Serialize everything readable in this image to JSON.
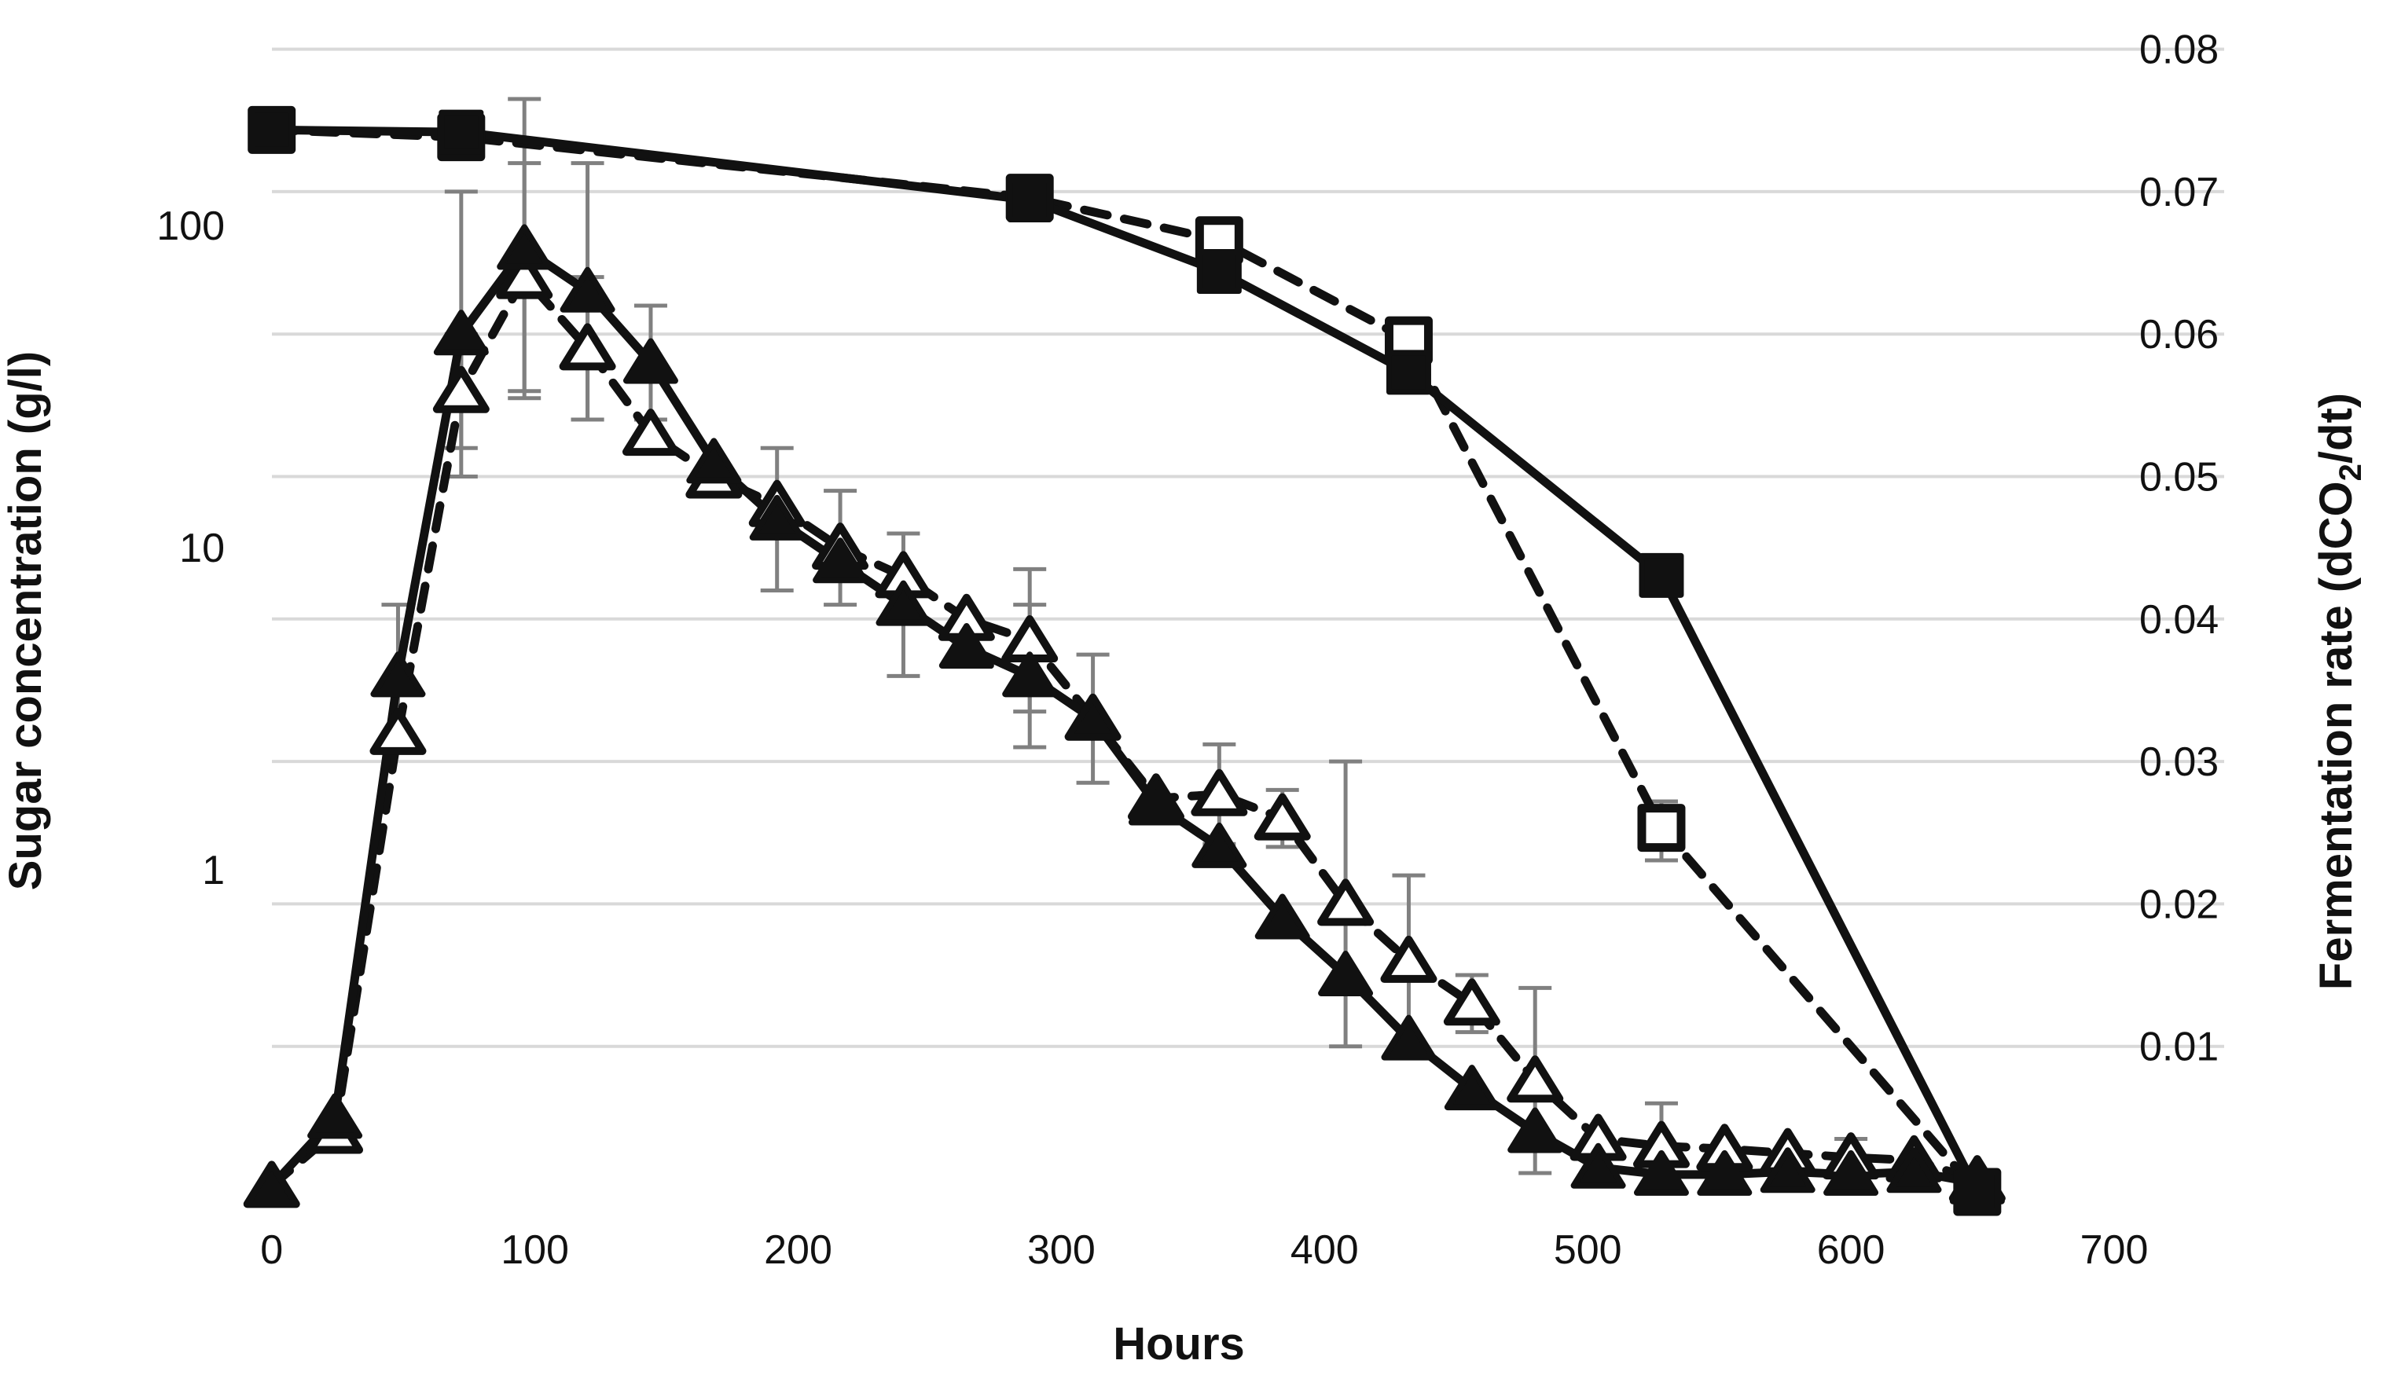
{
  "figure": {
    "background": "#ffffff",
    "left_axis": {
      "title": "Sugar concentration (g/l)",
      "scale": "log",
      "ticks": [
        {
          "label": "100",
          "value": 100
        },
        {
          "label": "10",
          "value": 10
        },
        {
          "label": "1",
          "value": 1
        }
      ]
    },
    "right_axis": {
      "title_pre": "Fermentation rate (dCO",
      "title_sub": "2",
      "title_post": "/dt)",
      "scale": "linear",
      "ticks": [
        {
          "label": "0.08",
          "value": 0.08
        },
        {
          "label": "0.07",
          "value": 0.07
        },
        {
          "label": "0.06",
          "value": 0.06
        },
        {
          "label": "0.05",
          "value": 0.05
        },
        {
          "label": "0.04",
          "value": 0.04
        },
        {
          "label": "0.03",
          "value": 0.03
        },
        {
          "label": "0.02",
          "value": 0.02
        },
        {
          "label": "0.01",
          "value": 0.01
        }
      ]
    },
    "x_axis": {
      "title": "Hours",
      "ticks": [
        {
          "label": "0",
          "value": 0
        },
        {
          "label": "100",
          "value": 100
        },
        {
          "label": "200",
          "value": 200
        },
        {
          "label": "300",
          "value": 300
        },
        {
          "label": "400",
          "value": 400
        },
        {
          "label": "500",
          "value": 500
        },
        {
          "label": "600",
          "value": 600
        },
        {
          "label": "700",
          "value": 700
        }
      ]
    },
    "colors": {
      "series": "#111111",
      "gridline": "#d9d9d9",
      "error_bar": "#808080",
      "text": "#111111",
      "background": "#ffffff"
    }
  },
  "chart_data": {
    "type": "line",
    "title": "",
    "xlabel": "Hours",
    "ylabel_left": "Sugar concentration (g/l)",
    "ylabel_right": "Fermentation rate (dCO2/dt)",
    "x_range": [
      0,
      742
    ],
    "left_y_range": [
      0.1,
      352
    ],
    "left_y_scale": "log",
    "right_y_range": [
      0,
      0.0832
    ],
    "grid": {
      "horizontal": true,
      "vertical": false
    },
    "legend": null,
    "series": [
      {
        "name": "sugar-filled-squares",
        "description": "Sugar concentration, solid line, filled square markers (left log axis, g/l)",
        "axis": "left",
        "line": "solid",
        "marker": "filled-square",
        "x": [
          0,
          72,
          288,
          360,
          432,
          528,
          648
        ],
        "y": [
          198,
          195,
          120,
          72,
          35,
          8.2,
          0.1
        ],
        "err": [
          null,
          null,
          null,
          null,
          null,
          null,
          null
        ]
      },
      {
        "name": "sugar-open-squares",
        "description": "Sugar concentration, dashed line, open square markers (left log axis, g/l)",
        "axis": "left",
        "line": "dashed",
        "marker": "open-square",
        "x": [
          0,
          72,
          288,
          360,
          432,
          528,
          648
        ],
        "y": [
          198,
          188,
          122,
          90,
          44,
          1.35,
          0.1
        ],
        "err": [
          null,
          null,
          null,
          null,
          2,
          0.28,
          null
        ]
      },
      {
        "name": "rate-filled-triangles",
        "description": "Fermentation rate, solid line, filled triangle markers (right linear axis, dCO2/dt)",
        "axis": "right",
        "line": "solid",
        "marker": "filled-triangle",
        "x": [
          0,
          24,
          48,
          72,
          96,
          120,
          144,
          168,
          192,
          216,
          240,
          264,
          288,
          312,
          336,
          360,
          384,
          408,
          432,
          456,
          480,
          504,
          528,
          552,
          576,
          600,
          624,
          648
        ],
        "y": [
          0.0002,
          0.005,
          0.036,
          0.06,
          0.066,
          0.063,
          0.058,
          0.051,
          0.047,
          0.044,
          0.041,
          0.038,
          0.036,
          0.033,
          0.027,
          0.024,
          0.019,
          0.015,
          0.0105,
          0.007,
          0.004,
          0.0015,
          0.001,
          0.001,
          0.0012,
          0.001,
          0.0012,
          0.0004
        ],
        "err": [
          null,
          null,
          0.005,
          0.01,
          0.0105,
          0.009,
          0.004,
          null,
          0.005,
          null,
          0.005,
          null,
          0.005,
          0.0045,
          null,
          null,
          null,
          null,
          null,
          null,
          null,
          null,
          null,
          null,
          null,
          0.0025,
          null,
          null
        ]
      },
      {
        "name": "rate-open-triangles",
        "description": "Fermentation rate, dashed line, open triangle markers (right linear axis, dCO2/dt)",
        "axis": "right",
        "line": "dashed",
        "marker": "open-triangle",
        "x": [
          0,
          24,
          48,
          72,
          96,
          120,
          144,
          168,
          192,
          216,
          240,
          264,
          288,
          312,
          336,
          360,
          384,
          408,
          432,
          456,
          480,
          504,
          528,
          552,
          576,
          600,
          624,
          648
        ],
        "y": [
          0.0002,
          0.004,
          0.032,
          0.056,
          0.064,
          0.059,
          0.053,
          0.05,
          0.048,
          0.045,
          0.043,
          0.04,
          0.0385,
          0.033,
          0.0274,
          0.0277,
          0.026,
          0.02,
          0.016,
          0.013,
          0.0076,
          0.0035,
          0.003,
          0.0028,
          0.0025,
          0.0022,
          0.002,
          0.0006
        ],
        "err": [
          null,
          null,
          null,
          0.004,
          0.008,
          0.005,
          null,
          null,
          null,
          0.004,
          null,
          null,
          0.005,
          null,
          null,
          0.0035,
          0.002,
          0.01,
          0.006,
          0.002,
          0.0065,
          null,
          0.003,
          null,
          null,
          null,
          null,
          null
        ]
      }
    ]
  }
}
